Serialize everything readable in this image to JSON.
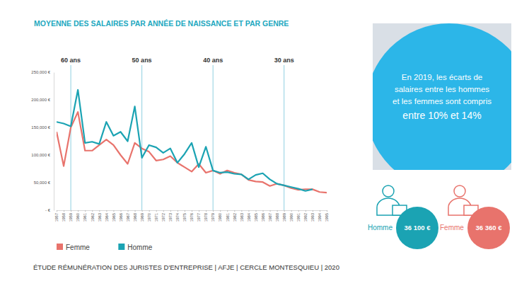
{
  "chart_data": {
    "type": "line",
    "title": "MOYENNE DES SALAIRES PAR ANNÉE DE NAISSANCE ET PAR GENRE",
    "x": [
      1957,
      1958,
      1959,
      1960,
      1961,
      1962,
      1963,
      1964,
      1965,
      1966,
      1967,
      1968,
      1969,
      1970,
      1971,
      1972,
      1973,
      1974,
      1975,
      1976,
      1977,
      1978,
      1979,
      1980,
      1981,
      1982,
      1983,
      1984,
      1985,
      1986,
      1987,
      1988,
      1989,
      1990,
      1991,
      1992,
      1993,
      1994,
      1995
    ],
    "series": [
      {
        "name": "Femme",
        "color": "#e8736c",
        "values": [
          142000,
          80000,
          150000,
          178000,
          108000,
          108000,
          118000,
          128000,
          118000,
          100000,
          84000,
          122000,
          112000,
          106000,
          90000,
          92000,
          98000,
          86000,
          78000,
          70000,
          84000,
          68000,
          72000,
          66000,
          72000,
          68000,
          65000,
          55000,
          52000,
          51000,
          44000,
          48000,
          45000,
          40000,
          37000,
          38000,
          38000,
          33000,
          32000
        ]
      },
      {
        "name": "Homme",
        "color": "#1ba3b3",
        "values": [
          160000,
          157000,
          152000,
          218000,
          122000,
          124000,
          120000,
          160000,
          135000,
          142000,
          125000,
          188000,
          95000,
          118000,
          114000,
          104000,
          112000,
          86000,
          102000,
          122000,
          78000,
          115000,
          72000,
          68000,
          69000,
          66000,
          65000,
          56000,
          64000,
          67000,
          56000,
          48000,
          45000,
          42000,
          39000,
          35000,
          38000,
          null,
          null
        ]
      }
    ],
    "xlim": [
      1957,
      1995
    ],
    "xticks": [
      1957,
      1958,
      1959,
      1960,
      1961,
      1962,
      1963,
      1964,
      1965,
      1966,
      1967,
      1968,
      1969,
      1970,
      1971,
      1972,
      1973,
      1974,
      1975,
      1976,
      1977,
      1978,
      1979,
      1980,
      1981,
      1982,
      1983,
      1984,
      1985,
      1986,
      1987,
      1988,
      1989,
      1990,
      1991,
      1992,
      1993,
      1994,
      1995
    ],
    "ylim": [
      0,
      250000
    ],
    "yticks": [
      {
        "value": 0,
        "label": "- €"
      },
      {
        "value": 50000,
        "label": "50,000 €"
      },
      {
        "value": 100000,
        "label": "100,000 €"
      },
      {
        "value": 150000,
        "label": "150,000 €"
      },
      {
        "value": 200000,
        "label": "200,000 €"
      },
      {
        "value": 250000,
        "label": "250,000 €"
      }
    ],
    "annotations": [
      {
        "x": 1959,
        "label": "60 ans"
      },
      {
        "x": 1969,
        "label": "50 ans"
      },
      {
        "x": 1979,
        "label": "40 ans"
      },
      {
        "x": 1989,
        "label": "30 ans"
      }
    ],
    "legend": "bottom"
  },
  "callout": {
    "lines": [
      "En 2019, les écarts de",
      "salaires entre les hommes",
      "et les femmes sont compris",
      "entre 10% et 14%"
    ]
  },
  "stats": [
    {
      "label": "Homme",
      "value": "36 100 €"
    },
    {
      "label": "Femme",
      "value": "36 360 €"
    }
  ],
  "source": "ÉTUDE RÉMUNÉRATION DES JURISTES D'ENTREPRISE | AFJE | CERCLE MONTESQUIEU | 2020"
}
